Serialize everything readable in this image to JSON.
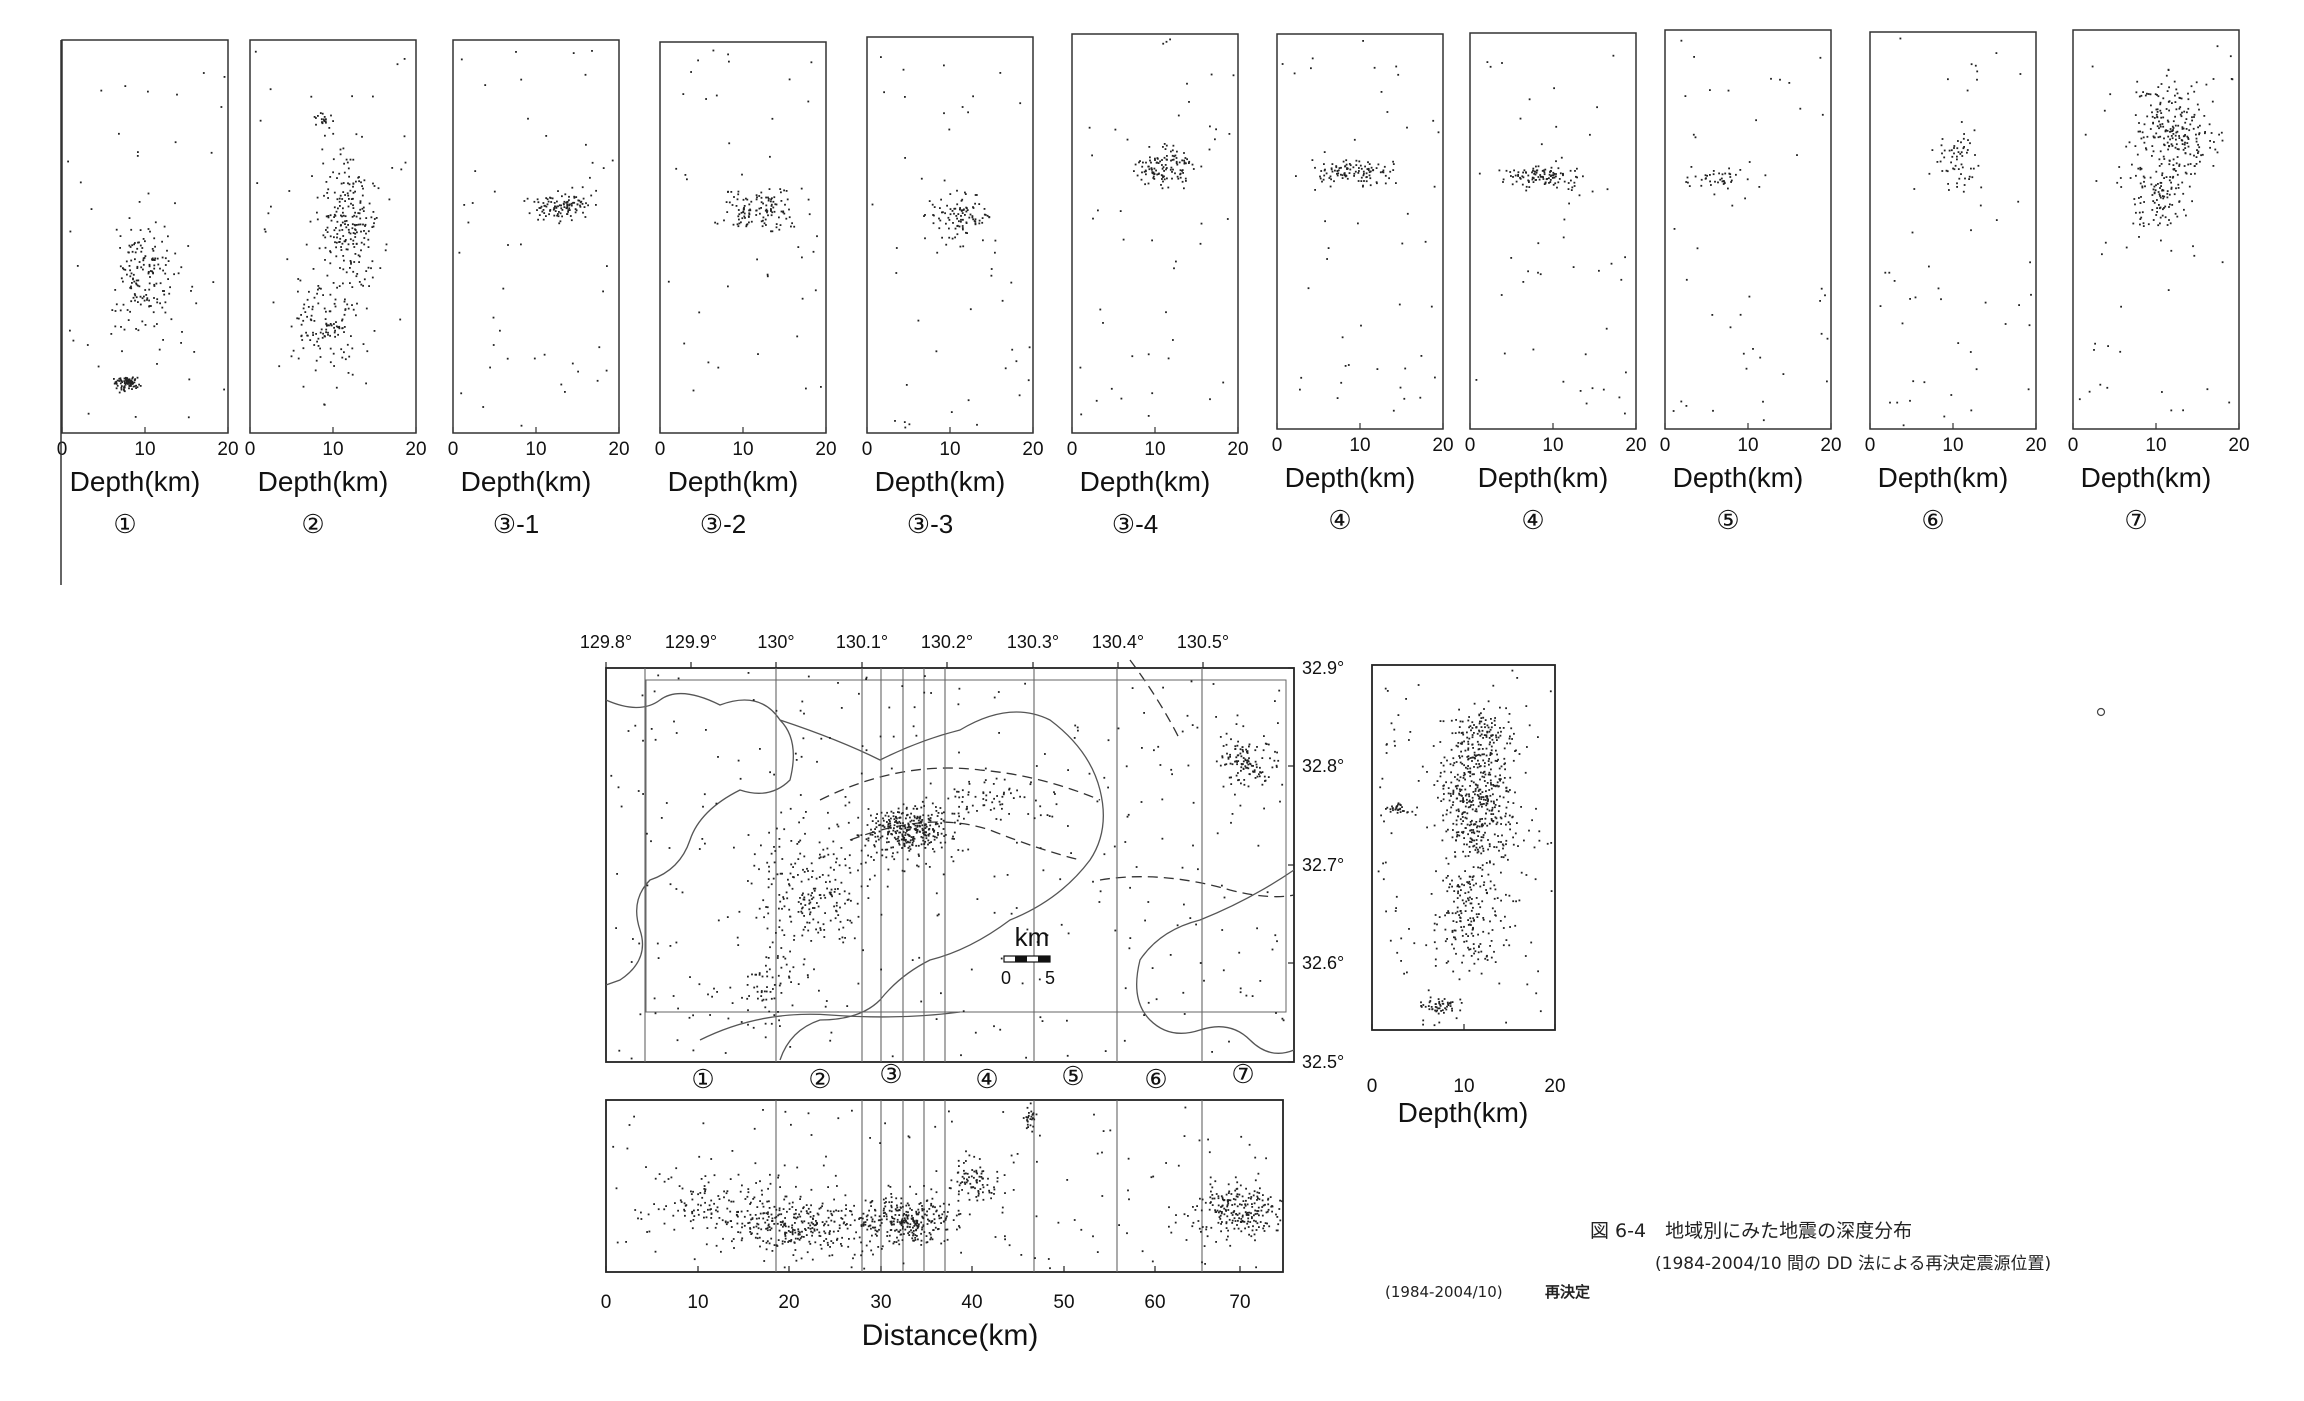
{
  "strip_panels": {
    "depth_ticks": [
      "0",
      "10",
      "20"
    ],
    "depth_label": "Depth(km)",
    "panels": [
      {
        "label": "①"
      },
      {
        "label": "②"
      },
      {
        "label": "③-1"
      },
      {
        "label": "③-2"
      },
      {
        "label": "③-3"
      },
      {
        "label": "③-4"
      },
      {
        "label": "④"
      },
      {
        "label": "④"
      },
      {
        "label": "⑤"
      },
      {
        "label": "⑥"
      },
      {
        "label": "⑦"
      }
    ]
  },
  "map": {
    "lon_ticks": [
      "129.8°",
      "129.9°",
      "130°",
      "130.1°",
      "130.2°",
      "130.3°",
      "130.4°",
      "130.5°"
    ],
    "lat_ticks": [
      "32.9°",
      "32.8°",
      "32.7°",
      "32.6°",
      "32.5°"
    ],
    "scale_unit": "km",
    "scale_ticks": [
      "0",
      "5"
    ],
    "region_labels": [
      "①",
      "②",
      "③",
      "④",
      "⑤",
      "⑥",
      "⑦"
    ]
  },
  "cross_section": {
    "distance_ticks": [
      "0",
      "10",
      "20",
      "30",
      "40",
      "50",
      "60",
      "70"
    ],
    "distance_label": "Distance(km)"
  },
  "side_depth": {
    "depth_ticks": [
      "0",
      "10",
      "20"
    ],
    "depth_label": "Depth(km)"
  },
  "caption": {
    "figure_title": "図 6-4　地域別にみた地震の深度分布",
    "figure_subtitle": "(1984-2004/10 間の DD 法による再決定震源位置)",
    "period": "(1984-2004/10)",
    "method": "再決定"
  }
}
